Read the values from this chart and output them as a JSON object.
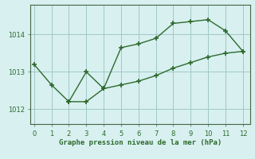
{
  "line1_x": [
    0,
    1,
    2,
    3,
    4,
    5,
    6,
    7,
    8,
    9,
    10,
    11,
    12
  ],
  "line1_y": [
    1013.2,
    1012.65,
    1012.2,
    1013.0,
    1012.55,
    1013.65,
    1013.75,
    1013.9,
    1014.3,
    1014.35,
    1014.4,
    1014.1,
    1013.55
  ],
  "line2_x": [
    2,
    3,
    4,
    5,
    6,
    7,
    8,
    9,
    10,
    11,
    12
  ],
  "line2_y": [
    1012.2,
    1012.2,
    1012.55,
    1012.65,
    1012.75,
    1012.9,
    1013.1,
    1013.25,
    1013.4,
    1013.5,
    1013.55
  ],
  "line_color": "#2d6a2d",
  "bg_color": "#d8f0f0",
  "grid_color": "#a0c8c8",
  "xlabel": "Graphe pression niveau de la mer (hPa)",
  "ylim": [
    1011.6,
    1014.8
  ],
  "xlim": [
    -0.2,
    12.4
  ],
  "yticks": [
    1012,
    1013,
    1014
  ],
  "xticks": [
    0,
    1,
    2,
    3,
    4,
    5,
    6,
    7,
    8,
    9,
    10,
    11,
    12
  ]
}
